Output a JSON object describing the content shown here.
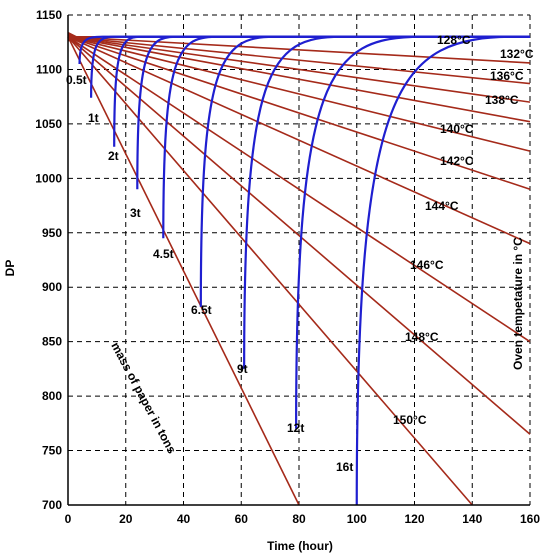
{
  "chart_data": {
    "type": "line",
    "xlabel": "Time (hour)",
    "ylabel": "DP",
    "xlim": [
      0,
      160
    ],
    "ylim": [
      700,
      1150
    ],
    "xticks": [
      0,
      20,
      40,
      60,
      80,
      100,
      120,
      140,
      160
    ],
    "yticks": [
      700,
      750,
      800,
      850,
      900,
      950,
      1000,
      1050,
      1100,
      1150
    ],
    "grid": true,
    "initial_dp": 1130,
    "temperature_color": "#a52a1a",
    "mass_color": "#1f1fd0",
    "temperature_curves": [
      {
        "label": "128°C",
        "points": [
          [
            0,
            1130
          ],
          [
            160,
            1130
          ]
        ]
      },
      {
        "label": "132°C",
        "points": [
          [
            0,
            1130
          ],
          [
            160,
            1106
          ]
        ]
      },
      {
        "label": "136°C",
        "points": [
          [
            0,
            1130
          ],
          [
            160,
            1087
          ]
        ]
      },
      {
        "label": "138°C",
        "points": [
          [
            0,
            1130
          ],
          [
            160,
            1070
          ]
        ]
      },
      {
        "label": "140°C",
        "points": [
          [
            0,
            1130
          ],
          [
            160,
            1052
          ]
        ]
      },
      {
        "label": "142°C",
        "points": [
          [
            0,
            1130
          ],
          [
            160,
            1025
          ]
        ]
      },
      {
        "label": "144°C",
        "points": [
          [
            0,
            1130
          ],
          [
            160,
            990
          ]
        ]
      },
      {
        "label": "146°C",
        "points": [
          [
            0,
            1130
          ],
          [
            160,
            940
          ]
        ]
      },
      {
        "label": "148°C",
        "points": [
          [
            0,
            1130
          ],
          [
            160,
            850
          ]
        ]
      },
      {
        "label": "150°C",
        "points": [
          [
            0,
            1130
          ],
          [
            160,
            765
          ]
        ]
      },
      {
        "label": "",
        "points": [
          [
            0,
            1130
          ],
          [
            140,
            700
          ]
        ]
      },
      {
        "label": "",
        "points": [
          [
            0,
            1130
          ],
          [
            80,
            700
          ]
        ]
      }
    ],
    "temperature_labels_text": [
      "128°C",
      "132°C",
      "136°C",
      "138°C",
      "140°C",
      "142°C",
      "144°C",
      "146°C",
      "148°C",
      "150°C"
    ],
    "mass_curves": [
      {
        "label": "0.5t",
        "t_end": 4,
        "dp_end": 1105
      },
      {
        "label": "1t",
        "t_end": 8,
        "dp_end": 1074
      },
      {
        "label": "2t",
        "t_end": 16,
        "dp_end": 1029
      },
      {
        "label": "3t",
        "t_end": 24,
        "dp_end": 990
      },
      {
        "label": "4.5t",
        "t_end": 33,
        "dp_end": 945
      },
      {
        "label": "6.5t",
        "t_end": 46,
        "dp_end": 882
      },
      {
        "label": "9t",
        "t_end": 61,
        "dp_end": 825
      },
      {
        "label": "12t",
        "t_end": 79,
        "dp_end": 770
      },
      {
        "label": "16t",
        "t_end": 100,
        "dp_end": 700
      }
    ],
    "annotations": {
      "mass": "mass of paper in tons",
      "temperature": "Oven tempetature in °C"
    }
  }
}
